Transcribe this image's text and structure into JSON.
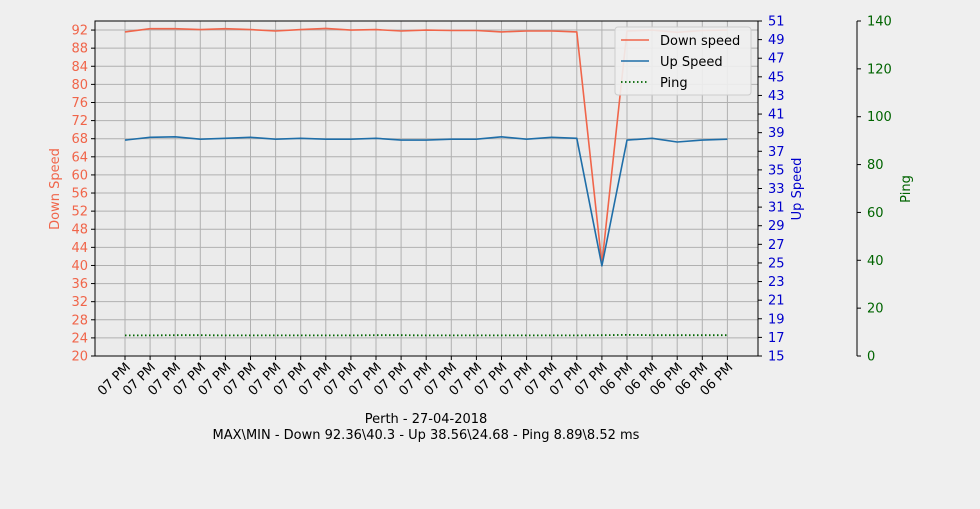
{
  "chart_data": {
    "type": "line",
    "xlabel_line1": "Perth - 27-04-2018",
    "xlabel_line2": "MAX\\MIN - Down 92.36\\40.3 - Up 38.56\\24.68 - Ping 8.89\\8.52 ms",
    "categories": [
      "07 PM",
      "07 PM",
      "07 PM",
      "07 PM",
      "07 PM",
      "07 PM",
      "07 PM",
      "07 PM",
      "07 PM",
      "07 PM",
      "07 PM",
      "07 PM",
      "07 PM",
      "07 PM",
      "07 PM",
      "07 PM",
      "07 PM",
      "07 PM",
      "07 PM",
      "07 PM",
      "06 PM",
      "06 PM",
      "06 PM",
      "06 PM",
      "06 PM"
    ],
    "y_left": {
      "label": "Down Speed",
      "color": "#f0654a",
      "ylim": [
        20,
        94
      ],
      "ticks": [
        20,
        24,
        28,
        32,
        36,
        40,
        44,
        48,
        52,
        56,
        60,
        64,
        68,
        72,
        76,
        80,
        84,
        88,
        92
      ]
    },
    "y_right1": {
      "label": "Up Speed",
      "color": "#0000cc",
      "ylim": [
        15,
        51
      ],
      "ticks": [
        15,
        17,
        19,
        21,
        23,
        25,
        27,
        29,
        31,
        33,
        35,
        37,
        39,
        41,
        43,
        45,
        47,
        49,
        51
      ]
    },
    "y_right2": {
      "label": "Ping",
      "color": "#006400",
      "ylim": [
        0,
        140
      ],
      "ticks": [
        0,
        20,
        40,
        60,
        80,
        100,
        120,
        140
      ]
    },
    "series": [
      {
        "name": "Down speed",
        "axis": "left",
        "color": "#f0654a",
        "style": "solid",
        "values": [
          91.6,
          92.3,
          92.3,
          92.1,
          92.3,
          92.1,
          91.8,
          92.1,
          92.36,
          92.0,
          92.1,
          91.8,
          92.0,
          91.9,
          91.9,
          91.6,
          91.8,
          91.8,
          91.6,
          40.3,
          91.8,
          92.0,
          91.5,
          91.9,
          92.0
        ]
      },
      {
        "name": "Up Speed",
        "axis": "right1",
        "color": "#1f6ea8",
        "style": "solid",
        "values": [
          38.2,
          38.5,
          38.56,
          38.3,
          38.4,
          38.5,
          38.3,
          38.4,
          38.3,
          38.3,
          38.4,
          38.2,
          38.2,
          38.3,
          38.3,
          38.56,
          38.3,
          38.5,
          38.4,
          24.68,
          38.2,
          38.4,
          38.0,
          38.2,
          38.3
        ]
      },
      {
        "name": "Ping",
        "axis": "right2",
        "color": "#006400",
        "style": "dotted",
        "values": [
          8.6,
          8.6,
          8.7,
          8.7,
          8.6,
          8.6,
          8.6,
          8.6,
          8.6,
          8.6,
          8.7,
          8.7,
          8.6,
          8.6,
          8.6,
          8.6,
          8.6,
          8.6,
          8.6,
          8.7,
          8.8,
          8.7,
          8.7,
          8.7,
          8.7
        ]
      }
    ],
    "grid": true,
    "legend": "top-right"
  }
}
